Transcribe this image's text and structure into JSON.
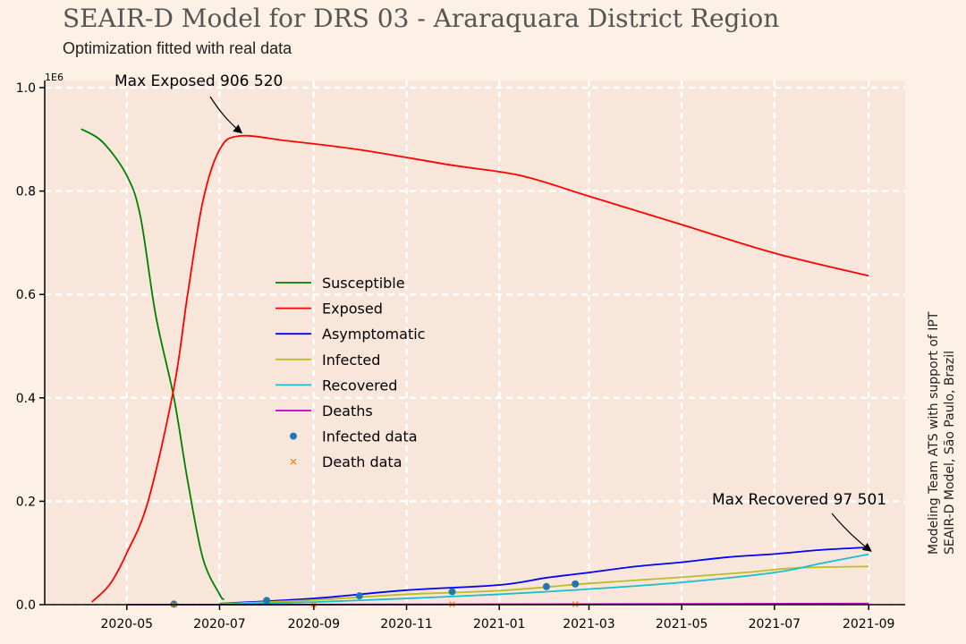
{
  "chart_data": {
    "type": "line",
    "title": "SEAIR-D Model for DRS 03 - Araraquara District Region",
    "subtitle": "Optimization fitted with real data",
    "xlabel": "",
    "ylabel": "",
    "y_scale_note": "1E6",
    "ylim": [
      0,
      1000000
    ],
    "xlim": [
      "2020-03-08",
      "2021-09-25"
    ],
    "x_ticks": [
      "2020-05",
      "2020-07",
      "2020-09",
      "2020-11",
      "2021-01",
      "2021-03",
      "2021-05",
      "2021-07",
      "2021-09"
    ],
    "y_ticks": [
      "0.0",
      "0.2",
      "0.4",
      "0.6",
      "0.8",
      "1.0"
    ],
    "grid": true,
    "legend_position": "center-left",
    "series": [
      {
        "name": "Susceptible",
        "color": "#008000",
        "x": [
          "2020-04-01",
          "2020-04-15",
          "2020-05-01",
          "2020-05-10",
          "2020-05-20",
          "2020-06-01",
          "2020-06-10",
          "2020-06-20",
          "2020-07-01",
          "2020-07-04"
        ],
        "y": [
          920000,
          895000,
          830000,
          750000,
          560000,
          400000,
          240000,
          90000,
          20000,
          10000
        ]
      },
      {
        "name": "Exposed",
        "color": "#ff0000",
        "x": [
          "2020-04-08",
          "2020-04-20",
          "2020-05-01",
          "2020-05-15",
          "2020-06-01",
          "2020-06-10",
          "2020-06-20",
          "2020-07-01",
          "2020-07-14",
          "2020-08-15",
          "2020-10-01",
          "2020-12-01",
          "2021-01-15",
          "2021-03-01",
          "2021-05-01",
          "2021-07-01",
          "2021-09-01"
        ],
        "y": [
          5000,
          40000,
          100000,
          200000,
          420000,
          600000,
          780000,
          880000,
          906520,
          897000,
          880000,
          850000,
          830000,
          790000,
          735000,
          680000,
          636000
        ]
      },
      {
        "name": "Asymptomatic",
        "color": "#0000ff",
        "x": [
          "2020-07-01",
          "2020-09-01",
          "2020-11-01",
          "2021-01-01",
          "2021-02-01",
          "2021-03-01",
          "2021-04-01",
          "2021-05-01",
          "2021-06-01",
          "2021-07-01",
          "2021-08-01",
          "2021-09-01"
        ],
        "y": [
          2000,
          12000,
          28000,
          38000,
          52000,
          62000,
          74000,
          82000,
          92000,
          98000,
          106000,
          111000
        ]
      },
      {
        "name": "Infected",
        "color": "#bcbd22",
        "x": [
          "2020-07-01",
          "2020-09-01",
          "2020-11-01",
          "2021-01-01",
          "2021-03-01",
          "2021-05-01",
          "2021-06-15",
          "2021-07-15",
          "2021-09-01"
        ],
        "y": [
          1500,
          9000,
          20000,
          27000,
          41000,
          53000,
          63000,
          71000,
          74000
        ]
      },
      {
        "name": "Recovered",
        "color": "#17becf",
        "x": [
          "2020-07-01",
          "2020-09-01",
          "2020-11-01",
          "2021-01-01",
          "2021-03-01",
          "2021-05-01",
          "2021-07-01",
          "2021-08-01",
          "2021-09-01"
        ],
        "y": [
          500,
          5000,
          12000,
          20000,
          30000,
          43000,
          62000,
          80000,
          97501
        ]
      },
      {
        "name": "Deaths",
        "color": "#bf00bf",
        "x": [
          "2020-05-01",
          "2020-09-01",
          "2021-01-01",
          "2021-05-01",
          "2021-09-01"
        ],
        "y": [
          0,
          200,
          800,
          1500,
          2200
        ]
      },
      {
        "name": "Infected data",
        "color": "#1f77b4",
        "marker": "dot",
        "x": [
          "2020-06-01",
          "2020-08-01",
          "2020-10-01",
          "2020-12-01",
          "2021-02-01",
          "2021-02-20"
        ],
        "y": [
          1000,
          8000,
          17000,
          25000,
          35000,
          40000
        ]
      },
      {
        "name": "Death data",
        "color": "#ff7f0e",
        "marker": "x",
        "x": [
          "2020-06-01",
          "2020-09-01",
          "2020-12-01",
          "2021-02-20"
        ],
        "y": [
          50,
          300,
          600,
          800
        ]
      }
    ],
    "annotations": [
      {
        "text": "Max Exposed 906 520",
        "x": "2020-07-14",
        "y": 906520
      },
      {
        "text": "Max Recovered 97 501",
        "x": "2021-09-01",
        "y": 97501
      }
    ]
  },
  "side_credit": {
    "line1": "Modeling Team ATS with support of IPT",
    "line2": "SEAIR-D Model, São Paulo, Brazil"
  }
}
